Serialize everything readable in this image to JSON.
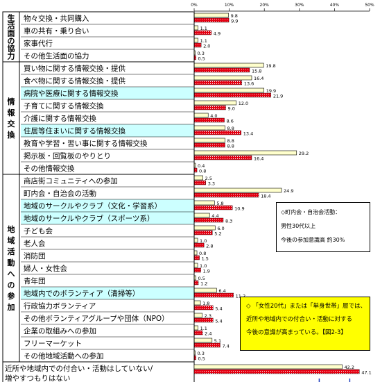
{
  "chart_data": {
    "type": "bar",
    "orientation": "horizontal",
    "axis_ticks": [
      "0%",
      "10%",
      "20%",
      "30%",
      "40%",
      "50%"
    ],
    "xlim": [
      0,
      50
    ],
    "groups": [
      {
        "label": "生活面の協力",
        "items": [
          {
            "label": "物々交換・共同購入",
            "values": [
              9.8,
              9.9
            ],
            "highlight": false
          },
          {
            "label": "車の共有・乗り合い",
            "values": [
              1.1,
              4.9
            ],
            "highlight": false
          },
          {
            "label": "家事代行",
            "values": [
              1.1,
              2.0
            ],
            "highlight": false
          },
          {
            "label": "その他生活面の協力",
            "values": [
              0.3,
              0.5
            ],
            "highlight": false
          }
        ]
      },
      {
        "label": "情報交換",
        "items": [
          {
            "label": "買い物に関する情報交換・提供",
            "values": [
              19.8,
              15.8
            ],
            "highlight": false
          },
          {
            "label": "食べ物に関する情報交換・提供",
            "values": [
              16.4,
              13.6
            ],
            "highlight": false
          },
          {
            "label": "病院や医療に関する情報交換",
            "values": [
              19.9,
              21.9
            ],
            "highlight": true
          },
          {
            "label": "子育てに関する情報交換",
            "values": [
              12.0,
              9.0
            ],
            "highlight": false
          },
          {
            "label": "介護に関する情報交換",
            "values": [
              4.0,
              8.6
            ],
            "highlight": false
          },
          {
            "label": "住居等住まいに関する情報交換",
            "values": [
              8.8,
              13.4
            ],
            "highlight": true
          },
          {
            "label": "教育や学習・習い事に関する情報交換",
            "values": [
              8.8,
              8.8
            ],
            "highlight": false
          },
          {
            "label": "掲示板・回覧板のやりとり",
            "values": [
              29.2,
              16.4
            ],
            "highlight": false
          },
          {
            "label": "その他情報交換",
            "values": [
              0.4,
              0.8
            ],
            "highlight": false
          }
        ]
      },
      {
        "label": "地域活動への参加",
        "items": [
          {
            "label": "商店街コミュニティへの参加",
            "values": [
              2.5,
              3.3
            ],
            "highlight": false
          },
          {
            "label": "町内会・自治会の活動",
            "values": [
              24.9,
              18.4
            ],
            "highlight": false
          },
          {
            "label": "地域のサークルやクラブ（文化・学習系）",
            "values": [
              5.8,
              10.9
            ],
            "highlight": true
          },
          {
            "label": "地域のサークルやクラブ（スポーツ系）",
            "values": [
              4.4,
              8.3
            ],
            "highlight": true
          },
          {
            "label": "子ども会",
            "values": [
              6.0,
              5.2
            ],
            "highlight": false
          },
          {
            "label": "老人会",
            "values": [
              1.0,
              2.8
            ],
            "highlight": false
          },
          {
            "label": "消防団",
            "values": [
              0.8,
              1.5
            ],
            "highlight": false
          },
          {
            "label": "婦人・女性会",
            "values": [
              1.0,
              1.9
            ],
            "highlight": false
          },
          {
            "label": "青年団",
            "values": [
              0.5,
              1.2
            ],
            "highlight": false
          },
          {
            "label": "地域内でのボランティア（清掃等）",
            "values": [
              6.4,
              11.2
            ],
            "highlight": true
          },
          {
            "label": "行政協力ボランティア",
            "values": [
              1.8,
              5.4
            ],
            "highlight": false
          },
          {
            "label": "その他ボランティアグループや団体（NPO）",
            "values": [
              2.3,
              5.4
            ],
            "highlight": false
          },
          {
            "label": "企業の取組みへの参加",
            "values": [
              1.1,
              2.4
            ],
            "highlight": false
          },
          {
            "label": "フリーマーケット",
            "values": [
              5.1,
              7.4
            ],
            "highlight": false
          },
          {
            "label": "その他地域活動への参加",
            "values": [
              0.3,
              0.5
            ],
            "highlight": false
          }
        ]
      }
    ],
    "last": {
      "label_lines": [
        "近所や地域内での付合い・活動はしていない/",
        "増やすつもりはない"
      ],
      "values": [
        42.2,
        47.1
      ]
    },
    "colors": {
      "series1": "#ffffcc",
      "series2": "#e60012",
      "highlight": "#ccffff",
      "arrow": "#1f3fbf"
    }
  },
  "notes": {
    "box1": [
      "◇町内会・自治会活動：",
      "男性30代以上",
      "今後の参加意識高 約30%"
    ],
    "box2": [
      "◇ 「女性20代」または「単身世帯」層では、",
      "近所や地域内での付合い・活動に対する",
      "今後の意識が高まっている。【図2-3】"
    ]
  }
}
